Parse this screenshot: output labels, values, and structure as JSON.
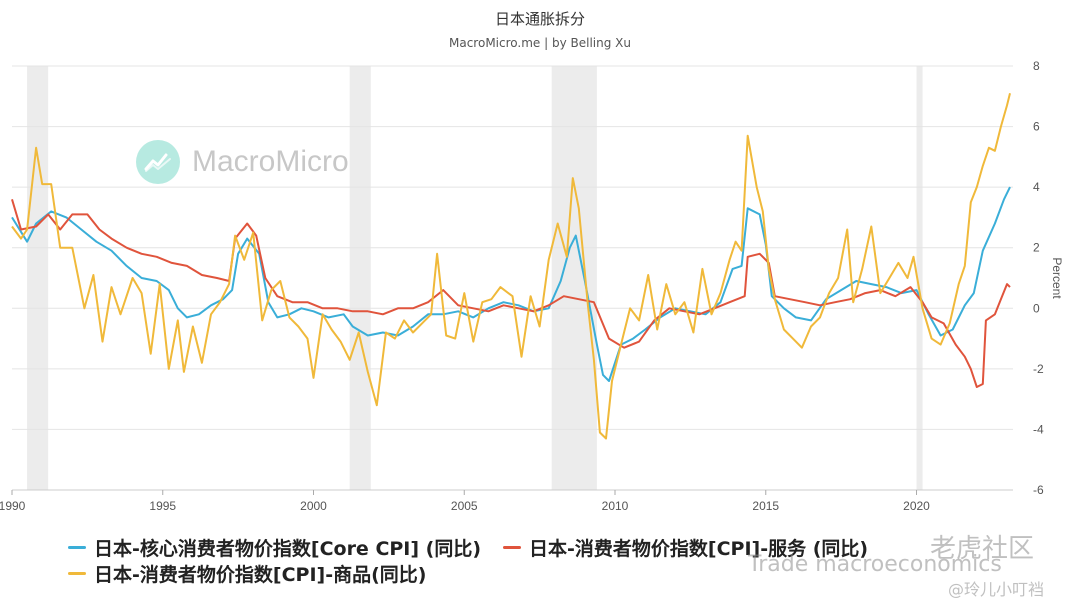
{
  "header": {
    "title": "日本通胀拆分",
    "subtitle": "MacroMicro.me | by Belling Xu"
  },
  "watermark": {
    "brand": "MacroMicro",
    "icon": "macromicro-logo-icon"
  },
  "overlay": {
    "line1": "老虎社区",
    "line2": "Trade macroeconomics",
    "line3": "@玲儿小叮裆"
  },
  "legend": [
    {
      "label": "日本-核心消费者物价指数[Core CPI] (同比)",
      "color": "#3aaed8"
    },
    {
      "label": "日本-消费者物价指数[CPI]-服务 (同比)",
      "color": "#e0543c"
    },
    {
      "label": "日本-消费者物价指数[CPI]-商品(同比)",
      "color": "#f0b93a"
    }
  ],
  "chart_data": {
    "type": "line",
    "title": "日本通胀拆分",
    "subtitle": "MacroMicro.me | by Belling Xu",
    "ylabel": "Percent",
    "ylim": [
      -6,
      8
    ],
    "yticks": [
      -6,
      -4,
      -2,
      0,
      2,
      4,
      6,
      8
    ],
    "xlim": [
      1990,
      2023.2
    ],
    "xticks": [
      1990,
      1995,
      2000,
      2005,
      2010,
      2015,
      2020
    ],
    "recessions": [
      [
        1990.5,
        1991.2
      ],
      [
        2001.2,
        2001.9
      ],
      [
        2007.9,
        2009.4
      ],
      [
        2020.0,
        2020.2
      ]
    ],
    "grid": true,
    "legend_position": "bottom",
    "series": [
      {
        "name": "日本-核心消费者物价指数[Core CPI] (同比)",
        "color": "#3aaed8",
        "points": [
          [
            1990,
            3.0
          ],
          [
            1990.5,
            2.2
          ],
          [
            1990.8,
            2.8
          ],
          [
            1991.3,
            3.2
          ],
          [
            1991.8,
            3.0
          ],
          [
            1992.3,
            2.6
          ],
          [
            1992.8,
            2.2
          ],
          [
            1993.3,
            1.9
          ],
          [
            1993.8,
            1.4
          ],
          [
            1994.3,
            1.0
          ],
          [
            1994.8,
            0.9
          ],
          [
            1995.2,
            0.6
          ],
          [
            1995.5,
            0.0
          ],
          [
            1995.8,
            -0.3
          ],
          [
            1996.2,
            -0.2
          ],
          [
            1996.6,
            0.1
          ],
          [
            1997.0,
            0.3
          ],
          [
            1997.3,
            0.6
          ],
          [
            1997.5,
            1.8
          ],
          [
            1997.8,
            2.3
          ],
          [
            1998.2,
            1.8
          ],
          [
            1998.5,
            0.2
          ],
          [
            1998.8,
            -0.3
          ],
          [
            1999.2,
            -0.2
          ],
          [
            1999.6,
            0.0
          ],
          [
            2000.0,
            -0.1
          ],
          [
            2000.5,
            -0.3
          ],
          [
            2001.0,
            -0.2
          ],
          [
            2001.3,
            -0.6
          ],
          [
            2001.8,
            -0.9
          ],
          [
            2002.3,
            -0.8
          ],
          [
            2002.8,
            -0.9
          ],
          [
            2003.3,
            -0.6
          ],
          [
            2003.8,
            -0.2
          ],
          [
            2004.3,
            -0.2
          ],
          [
            2004.8,
            -0.1
          ],
          [
            2005.3,
            -0.3
          ],
          [
            2005.8,
            0.0
          ],
          [
            2006.3,
            0.2
          ],
          [
            2006.8,
            0.1
          ],
          [
            2007.3,
            -0.1
          ],
          [
            2007.8,
            0.0
          ],
          [
            2008.2,
            0.9
          ],
          [
            2008.5,
            2.0
          ],
          [
            2008.7,
            2.4
          ],
          [
            2009.0,
            0.9
          ],
          [
            2009.4,
            -1.2
          ],
          [
            2009.6,
            -2.2
          ],
          [
            2009.8,
            -2.4
          ],
          [
            2010.2,
            -1.2
          ],
          [
            2010.6,
            -1.0
          ],
          [
            2011.0,
            -0.7
          ],
          [
            2011.5,
            -0.3
          ],
          [
            2012.0,
            0.0
          ],
          [
            2012.5,
            -0.1
          ],
          [
            2013.0,
            -0.2
          ],
          [
            2013.5,
            0.2
          ],
          [
            2013.9,
            1.3
          ],
          [
            2014.2,
            1.4
          ],
          [
            2014.4,
            3.3
          ],
          [
            2014.8,
            3.1
          ],
          [
            2015.0,
            2.1
          ],
          [
            2015.2,
            0.4
          ],
          [
            2015.6,
            0.0
          ],
          [
            2016.0,
            -0.3
          ],
          [
            2016.5,
            -0.4
          ],
          [
            2017.0,
            0.3
          ],
          [
            2017.5,
            0.6
          ],
          [
            2018.0,
            0.9
          ],
          [
            2018.5,
            0.8
          ],
          [
            2019.0,
            0.7
          ],
          [
            2019.5,
            0.5
          ],
          [
            2020.0,
            0.6
          ],
          [
            2020.4,
            -0.2
          ],
          [
            2020.8,
            -0.9
          ],
          [
            2021.2,
            -0.7
          ],
          [
            2021.6,
            0.1
          ],
          [
            2021.9,
            0.5
          ],
          [
            2022.2,
            1.9
          ],
          [
            2022.6,
            2.8
          ],
          [
            2022.9,
            3.6
          ],
          [
            2023.1,
            4.0
          ]
        ]
      },
      {
        "name": "日本-消费者物价指数[CPI]-服务 (同比)",
        "color": "#e0543c",
        "points": [
          [
            1990,
            3.6
          ],
          [
            1990.3,
            2.6
          ],
          [
            1990.8,
            2.7
          ],
          [
            1991.2,
            3.1
          ],
          [
            1991.6,
            2.6
          ],
          [
            1992.0,
            3.1
          ],
          [
            1992.5,
            3.1
          ],
          [
            1992.9,
            2.6
          ],
          [
            1993.3,
            2.3
          ],
          [
            1993.8,
            2.0
          ],
          [
            1994.3,
            1.8
          ],
          [
            1994.8,
            1.7
          ],
          [
            1995.3,
            1.5
          ],
          [
            1995.8,
            1.4
          ],
          [
            1996.3,
            1.1
          ],
          [
            1996.8,
            1.0
          ],
          [
            1997.2,
            0.9
          ],
          [
            1997.4,
            2.3
          ],
          [
            1997.8,
            2.8
          ],
          [
            1998.1,
            2.4
          ],
          [
            1998.4,
            1.0
          ],
          [
            1998.8,
            0.4
          ],
          [
            1999.3,
            0.2
          ],
          [
            1999.8,
            0.2
          ],
          [
            2000.3,
            0.0
          ],
          [
            2000.8,
            0.0
          ],
          [
            2001.3,
            -0.1
          ],
          [
            2001.8,
            -0.1
          ],
          [
            2002.3,
            -0.2
          ],
          [
            2002.8,
            0.0
          ],
          [
            2003.3,
            0.0
          ],
          [
            2003.8,
            0.2
          ],
          [
            2004.3,
            0.6
          ],
          [
            2004.8,
            0.1
          ],
          [
            2005.3,
            0.0
          ],
          [
            2005.8,
            -0.1
          ],
          [
            2006.3,
            0.1
          ],
          [
            2006.8,
            0.0
          ],
          [
            2007.3,
            -0.1
          ],
          [
            2007.8,
            0.1
          ],
          [
            2008.3,
            0.4
          ],
          [
            2008.8,
            0.3
          ],
          [
            2009.3,
            0.2
          ],
          [
            2009.8,
            -1.0
          ],
          [
            2010.3,
            -1.3
          ],
          [
            2010.8,
            -1.1
          ],
          [
            2011.3,
            -0.4
          ],
          [
            2011.8,
            0.0
          ],
          [
            2012.3,
            -0.1
          ],
          [
            2012.8,
            -0.2
          ],
          [
            2013.3,
            0.0
          ],
          [
            2013.8,
            0.2
          ],
          [
            2014.3,
            0.4
          ],
          [
            2014.4,
            1.7
          ],
          [
            2014.8,
            1.8
          ],
          [
            2015.1,
            1.5
          ],
          [
            2015.3,
            0.4
          ],
          [
            2015.8,
            0.3
          ],
          [
            2016.3,
            0.2
          ],
          [
            2016.8,
            0.1
          ],
          [
            2017.3,
            0.2
          ],
          [
            2017.8,
            0.3
          ],
          [
            2018.3,
            0.5
          ],
          [
            2018.8,
            0.6
          ],
          [
            2019.3,
            0.4
          ],
          [
            2019.8,
            0.7
          ],
          [
            2020.2,
            0.2
          ],
          [
            2020.5,
            -0.3
          ],
          [
            2020.9,
            -0.5
          ],
          [
            2021.3,
            -1.2
          ],
          [
            2021.6,
            -1.6
          ],
          [
            2021.8,
            -2.0
          ],
          [
            2022.0,
            -2.6
          ],
          [
            2022.2,
            -2.5
          ],
          [
            2022.3,
            -0.4
          ],
          [
            2022.6,
            -0.2
          ],
          [
            2022.8,
            0.3
          ],
          [
            2023.0,
            0.8
          ],
          [
            2023.1,
            0.7
          ]
        ]
      },
      {
        "name": "日本-消费者物价指数[CPI]-商品(同比)",
        "color": "#f0b93a",
        "points": [
          [
            1990,
            2.7
          ],
          [
            1990.3,
            2.3
          ],
          [
            1990.5,
            2.6
          ],
          [
            1990.8,
            5.3
          ],
          [
            1991.0,
            4.1
          ],
          [
            1991.3,
            4.1
          ],
          [
            1991.6,
            2.0
          ],
          [
            1992.0,
            2.0
          ],
          [
            1992.4,
            0.0
          ],
          [
            1992.7,
            1.1
          ],
          [
            1993.0,
            -1.1
          ],
          [
            1993.3,
            0.7
          ],
          [
            1993.6,
            -0.2
          ],
          [
            1994.0,
            1.0
          ],
          [
            1994.3,
            0.5
          ],
          [
            1994.6,
            -1.5
          ],
          [
            1994.9,
            0.8
          ],
          [
            1995.2,
            -2.0
          ],
          [
            1995.5,
            -0.4
          ],
          [
            1995.7,
            -2.1
          ],
          [
            1996.0,
            -0.6
          ],
          [
            1996.3,
            -1.8
          ],
          [
            1996.6,
            -0.2
          ],
          [
            1996.9,
            0.2
          ],
          [
            1997.2,
            0.8
          ],
          [
            1997.4,
            2.4
          ],
          [
            1997.7,
            1.6
          ],
          [
            1998.0,
            2.5
          ],
          [
            1998.3,
            -0.4
          ],
          [
            1998.6,
            0.6
          ],
          [
            1998.9,
            0.9
          ],
          [
            1999.2,
            -0.3
          ],
          [
            1999.5,
            -0.6
          ],
          [
            1999.8,
            -1.0
          ],
          [
            2000.0,
            -2.3
          ],
          [
            2000.3,
            -0.2
          ],
          [
            2000.6,
            -0.7
          ],
          [
            2000.9,
            -1.1
          ],
          [
            2001.2,
            -1.7
          ],
          [
            2001.5,
            -0.8
          ],
          [
            2001.8,
            -2.1
          ],
          [
            2002.1,
            -3.2
          ],
          [
            2002.4,
            -0.8
          ],
          [
            2002.7,
            -1.0
          ],
          [
            2003.0,
            -0.4
          ],
          [
            2003.3,
            -0.8
          ],
          [
            2003.6,
            -0.5
          ],
          [
            2003.9,
            -0.2
          ],
          [
            2004.1,
            1.8
          ],
          [
            2004.4,
            -0.9
          ],
          [
            2004.7,
            -1.0
          ],
          [
            2005.0,
            0.5
          ],
          [
            2005.3,
            -1.1
          ],
          [
            2005.6,
            0.2
          ],
          [
            2005.9,
            0.3
          ],
          [
            2006.2,
            0.7
          ],
          [
            2006.6,
            0.4
          ],
          [
            2006.9,
            -1.6
          ],
          [
            2007.2,
            0.4
          ],
          [
            2007.5,
            -0.6
          ],
          [
            2007.8,
            1.6
          ],
          [
            2008.1,
            2.8
          ],
          [
            2008.4,
            1.7
          ],
          [
            2008.6,
            4.3
          ],
          [
            2008.8,
            3.3
          ],
          [
            2009.1,
            0.1
          ],
          [
            2009.3,
            -1.7
          ],
          [
            2009.5,
            -4.1
          ],
          [
            2009.7,
            -4.3
          ],
          [
            2009.9,
            -2.4
          ],
          [
            2010.2,
            -1.2
          ],
          [
            2010.5,
            0.0
          ],
          [
            2010.8,
            -0.4
          ],
          [
            2011.1,
            1.1
          ],
          [
            2011.4,
            -0.7
          ],
          [
            2011.7,
            0.8
          ],
          [
            2012.0,
            -0.2
          ],
          [
            2012.3,
            0.2
          ],
          [
            2012.6,
            -0.8
          ],
          [
            2012.9,
            1.3
          ],
          [
            2013.2,
            -0.2
          ],
          [
            2013.5,
            0.5
          ],
          [
            2013.8,
            1.6
          ],
          [
            2014.0,
            2.2
          ],
          [
            2014.2,
            1.9
          ],
          [
            2014.4,
            5.7
          ],
          [
            2014.7,
            4.0
          ],
          [
            2014.9,
            3.2
          ],
          [
            2015.1,
            1.3
          ],
          [
            2015.3,
            0.3
          ],
          [
            2015.6,
            -0.7
          ],
          [
            2015.9,
            -1.0
          ],
          [
            2016.2,
            -1.3
          ],
          [
            2016.5,
            -0.6
          ],
          [
            2016.8,
            -0.3
          ],
          [
            2017.1,
            0.5
          ],
          [
            2017.4,
            1.0
          ],
          [
            2017.7,
            2.6
          ],
          [
            2017.9,
            0.2
          ],
          [
            2018.2,
            1.3
          ],
          [
            2018.5,
            2.7
          ],
          [
            2018.8,
            0.5
          ],
          [
            2019.1,
            1.0
          ],
          [
            2019.4,
            1.5
          ],
          [
            2019.7,
            1.0
          ],
          [
            2019.9,
            1.7
          ],
          [
            2020.2,
            0.0
          ],
          [
            2020.5,
            -1.0
          ],
          [
            2020.8,
            -1.2
          ],
          [
            2021.1,
            -0.5
          ],
          [
            2021.4,
            0.8
          ],
          [
            2021.6,
            1.4
          ],
          [
            2021.8,
            3.5
          ],
          [
            2022.0,
            4.0
          ],
          [
            2022.2,
            4.7
          ],
          [
            2022.4,
            5.3
          ],
          [
            2022.6,
            5.2
          ],
          [
            2022.8,
            6.0
          ],
          [
            2023.0,
            6.7
          ],
          [
            2023.1,
            7.1
          ]
        ]
      }
    ]
  }
}
